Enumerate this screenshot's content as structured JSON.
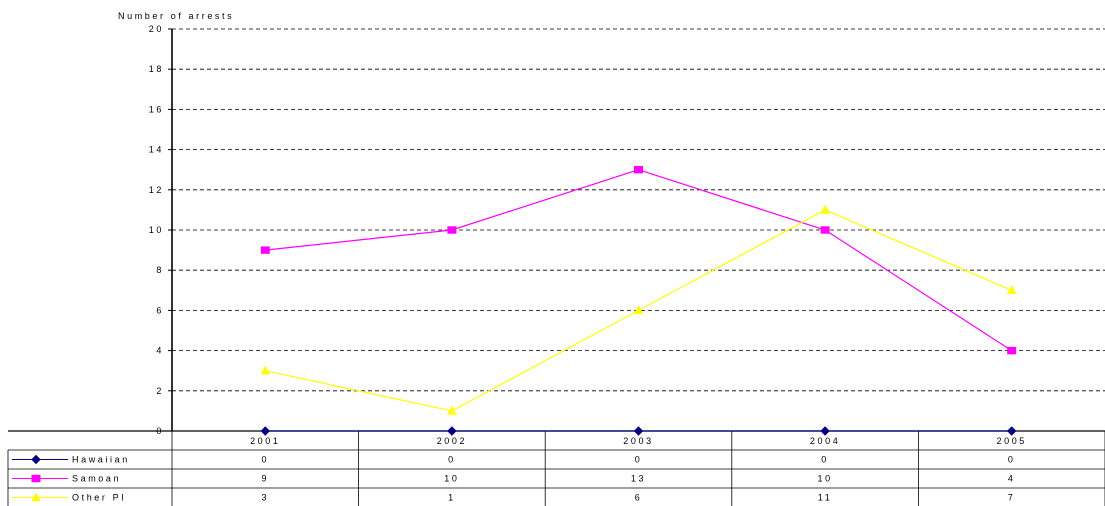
{
  "chart_data": {
    "type": "line",
    "title": "",
    "ylabel": "Number of arrests",
    "xlabel": "",
    "categories": [
      "2001",
      "2002",
      "2003",
      "2004",
      "2005"
    ],
    "ylim": [
      0,
      20
    ],
    "yticks": [
      "0",
      "2",
      "4",
      "6",
      "8",
      "10",
      "12",
      "14",
      "16",
      "18",
      "20"
    ],
    "grid": "horizontal dashed",
    "legend": "data-table-bottom",
    "series": [
      {
        "name": "Hawaiian",
        "values": [
          0,
          0,
          0,
          0,
          0
        ],
        "labels": [
          "0",
          "0",
          "0",
          "0",
          "0"
        ],
        "color": "#000080",
        "marker": "diamond"
      },
      {
        "name": "Samoan",
        "values": [
          9,
          10,
          13,
          10,
          4
        ],
        "labels": [
          "9",
          "10",
          "13",
          "10",
          "4"
        ],
        "color": "#ff00ff",
        "marker": "square"
      },
      {
        "name": "Other PI",
        "values": [
          3,
          1,
          6,
          11,
          7
        ],
        "labels": [
          "3",
          "1",
          "6",
          "11",
          "7"
        ],
        "color": "#ffff00",
        "marker": "triangle"
      }
    ]
  }
}
